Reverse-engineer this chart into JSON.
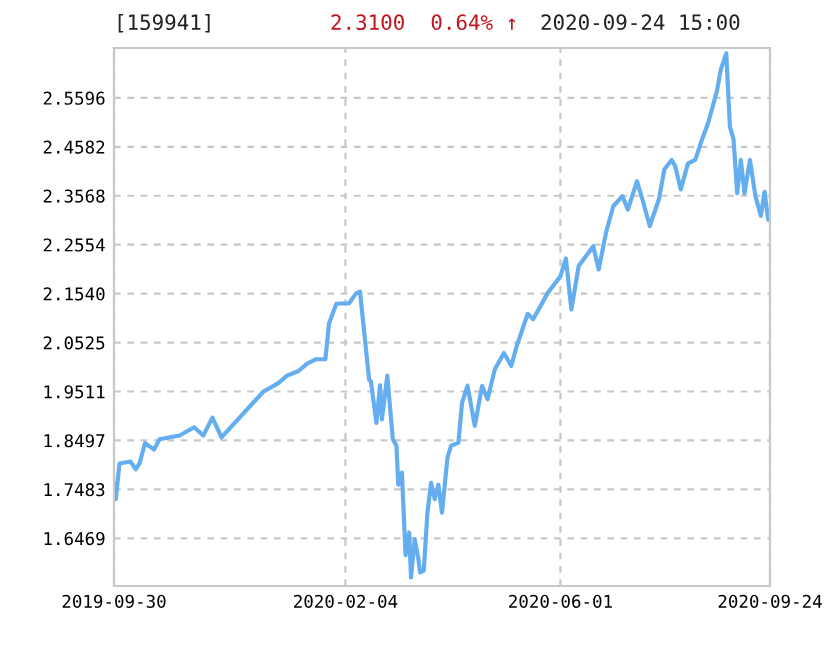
{
  "chart_data": {
    "type": "line",
    "title": "[159941]",
    "subtitle": "2.3100  0.64% ↑",
    "annotations": [
      "2020-09-24 15:00"
    ],
    "x": [
      "2019-09-30",
      "2019-10-01",
      "2019-10-03",
      "2019-10-09",
      "2019-10-12",
      "2019-10-14",
      "2019-10-17",
      "2019-10-22",
      "2019-10-25",
      "2019-11-05",
      "2019-11-13",
      "2019-11-18",
      "2019-11-23",
      "2019-11-28",
      "2019-12-04",
      "2019-12-13",
      "2019-12-21",
      "2019-12-29",
      "2020-01-03",
      "2020-01-09",
      "2020-01-14",
      "2020-01-19",
      "2020-01-24",
      "2020-01-26",
      "2020-01-30",
      "2020-02-06",
      "2020-02-10",
      "2020-02-12",
      "2020-02-17",
      "2020-02-18",
      "2020-02-21",
      "2020-02-23",
      "2020-02-24",
      "2020-02-27",
      "2020-03-01",
      "2020-03-03",
      "2020-03-04",
      "2020-03-06",
      "2020-03-08",
      "2020-03-10",
      "2020-03-11",
      "2020-03-13",
      "2020-03-15",
      "2020-03-16",
      "2020-03-18",
      "2020-03-20",
      "2020-03-22",
      "2020-03-24",
      "2020-03-26",
      "2020-03-28",
      "2020-03-31",
      "2020-04-02",
      "2020-04-06",
      "2020-04-08",
      "2020-04-11",
      "2020-04-15",
      "2020-04-19",
      "2020-04-22",
      "2020-04-26",
      "2020-05-01",
      "2020-05-05",
      "2020-05-08",
      "2020-05-14",
      "2020-05-17",
      "2020-05-25",
      "2020-06-01",
      "2020-06-04",
      "2020-06-07",
      "2020-06-11",
      "2020-06-19",
      "2020-06-22",
      "2020-06-26",
      "2020-06-30",
      "2020-07-05",
      "2020-07-08",
      "2020-07-13",
      "2020-07-16",
      "2020-07-20",
      "2020-07-25",
      "2020-07-28",
      "2020-08-01",
      "2020-08-03",
      "2020-08-06",
      "2020-08-10",
      "2020-08-14",
      "2020-08-17",
      "2020-08-21",
      "2020-08-24",
      "2020-08-26",
      "2020-08-28",
      "2020-08-31",
      "2020-09-02",
      "2020-09-04",
      "2020-09-06",
      "2020-09-08",
      "2020-09-10",
      "2020-09-13",
      "2020-09-16",
      "2020-09-19",
      "2020-09-21",
      "2020-09-23",
      "2020-09-24"
    ],
    "series": [
      {
        "color": "#64aef0",
        "values": [
          1.761,
          1.728,
          1.802,
          1.806,
          1.79,
          1.802,
          1.844,
          1.831,
          1.852,
          1.86,
          1.877,
          1.86,
          1.897,
          1.856,
          1.881,
          1.918,
          1.951,
          1.968,
          1.984,
          1.993,
          2.009,
          2.018,
          2.018,
          2.092,
          2.133,
          2.134,
          2.155,
          2.158,
          1.976,
          1.972,
          1.886,
          1.964,
          1.893,
          1.984,
          1.852,
          1.839,
          1.758,
          1.783,
          1.612,
          1.659,
          1.566,
          1.645,
          1.604,
          1.576,
          1.58,
          1.7,
          1.762,
          1.728,
          1.758,
          1.7,
          1.814,
          1.839,
          1.845,
          1.928,
          1.963,
          1.88,
          1.963,
          1.935,
          1.997,
          2.031,
          2.004,
          2.045,
          2.112,
          2.101,
          2.155,
          2.19,
          2.227,
          2.121,
          2.211,
          2.252,
          2.204,
          2.28,
          2.335,
          2.356,
          2.328,
          2.387,
          2.349,
          2.294,
          2.349,
          2.411,
          2.431,
          2.418,
          2.37,
          2.424,
          2.431,
          2.466,
          2.507,
          2.548,
          2.576,
          2.618,
          2.652,
          2.5,
          2.473,
          2.362,
          2.431,
          2.362,
          2.431,
          2.356,
          2.315,
          2.365,
          2.307,
          2.31
        ]
      }
    ],
    "xlim": [
      "2019-09-30",
      "2020-09-24"
    ],
    "xticks": [
      "2019-09-30",
      "2020-02-04",
      "2020-06-01",
      "2020-09-24"
    ],
    "ylim": [
      1.548,
      2.663
    ],
    "yticks": [
      {
        "value": 1.6469,
        "label": "1.6469"
      },
      {
        "value": 1.7483,
        "label": "1.7483"
      },
      {
        "value": 1.8497,
        "label": "1.8497"
      },
      {
        "value": 1.9511,
        "label": "1.9511"
      },
      {
        "value": 2.0525,
        "label": "2.0525"
      },
      {
        "value": 2.154,
        "label": "2.1540"
      },
      {
        "value": 2.2554,
        "label": "2.2554"
      },
      {
        "value": 2.3568,
        "label": "2.3568"
      },
      {
        "value": 2.4582,
        "label": "2.4582"
      },
      {
        "value": 2.5596,
        "label": "2.5596"
      }
    ],
    "grid": true,
    "line_style": "solid"
  }
}
